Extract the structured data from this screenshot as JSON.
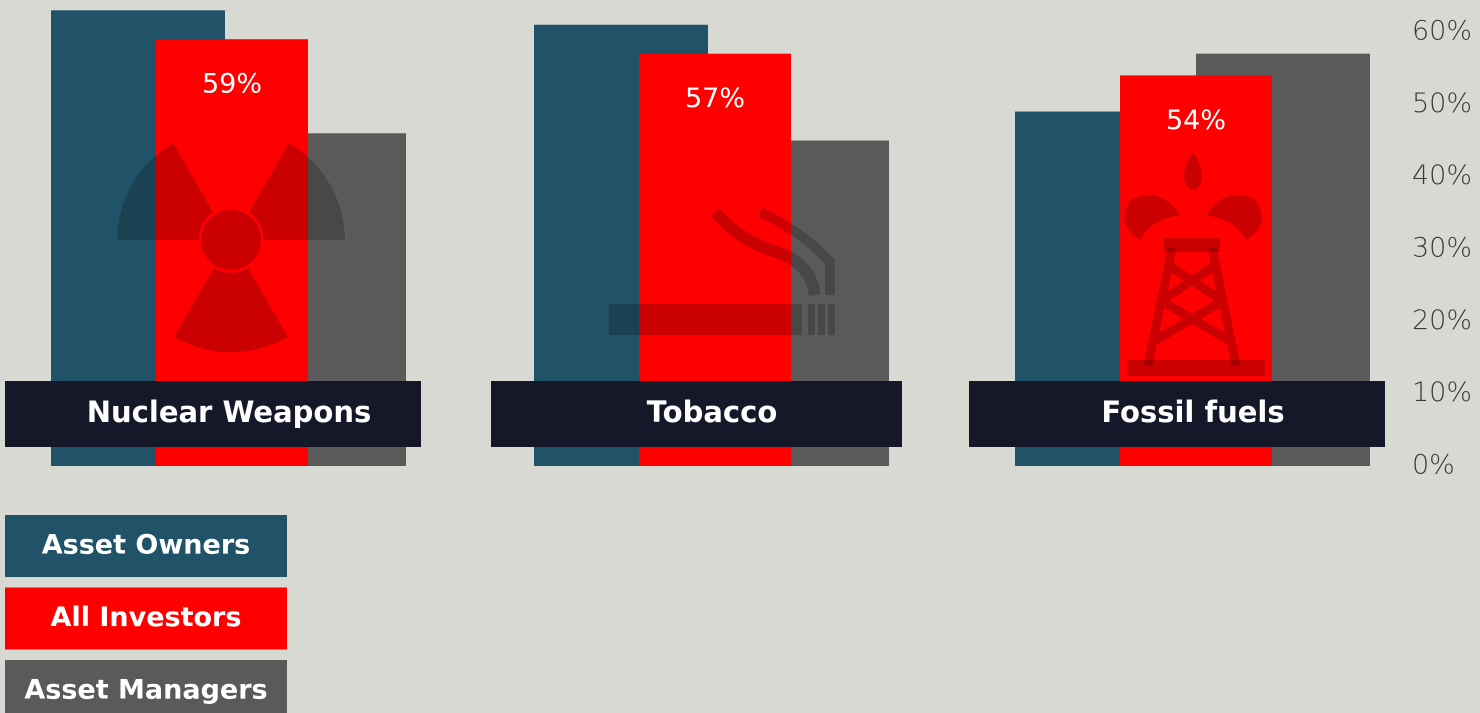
{
  "chart_data": {
    "type": "bar",
    "categories": [
      "Nuclear Weapons",
      "Tobacco",
      "Fossil fuels"
    ],
    "series": [
      {
        "name": "Asset Owners",
        "color": "#215368",
        "values": [
          63,
          61,
          49
        ]
      },
      {
        "name": "All Investors",
        "color": "#fe0000",
        "values": [
          59,
          57,
          54
        ],
        "value_labels": [
          "59%",
          "57%",
          "54%"
        ]
      },
      {
        "name": "Asset Managers",
        "color": "#5a5a5a",
        "values": [
          46,
          45,
          57
        ]
      }
    ],
    "ylim": [
      0,
      60
    ],
    "yticks": [
      {
        "value": 0,
        "label": "0%"
      },
      {
        "value": 10,
        "label": "10%"
      },
      {
        "value": 20,
        "label": "20%"
      },
      {
        "value": 30,
        "label": "30%"
      },
      {
        "value": 40,
        "label": "40%"
      },
      {
        "value": 50,
        "label": "50%"
      },
      {
        "value": 60,
        "label": "60%"
      }
    ],
    "grid": false
  }
}
